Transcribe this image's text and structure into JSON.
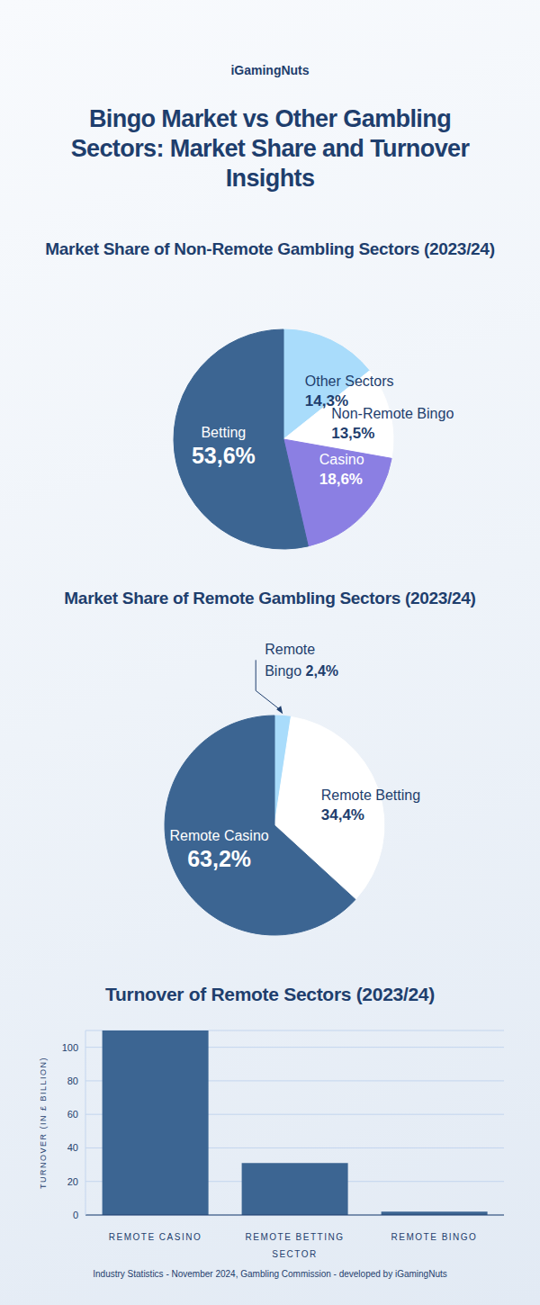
{
  "brand": "iGamingNuts",
  "title": "Bingo Market vs Other Gambling Sectors: Market Share and Turnover Insights",
  "source": "Industry Statistics - November 2024, Gambling Commission - developed by iGamingNuts",
  "chart_data": [
    {
      "type": "pie",
      "title": "Market Share of Non-Remote Gambling Sectors (2023/24)",
      "categories": [
        "Other Sectors",
        "Non-Remote Bingo",
        "Casino",
        "Betting"
      ],
      "values": [
        14.3,
        13.5,
        18.6,
        53.6
      ],
      "value_labels": [
        "14,3%",
        "13,5%",
        "18,6%",
        "53,6%"
      ],
      "colors": [
        "#a9dcfb",
        "#ffffff",
        "#8b7fe3",
        "#3c6592"
      ],
      "data_labels": true
    },
    {
      "type": "pie",
      "title": "Market Share of Remote Gambling Sectors (2023/24)",
      "categories": [
        "Remote Bingo",
        "Remote Betting",
        "Remote Casino"
      ],
      "values": [
        2.4,
        34.4,
        63.2
      ],
      "value_labels": [
        "2,4%",
        "34,4%",
        "63,2%"
      ],
      "colors": [
        "#a9dcfb",
        "#ffffff",
        "#3c6592"
      ],
      "data_labels": true
    },
    {
      "type": "bar",
      "title": "Turnover of Remote Sectors (2023/24)",
      "categories": [
        "REMOTE CASINO",
        "REMOTE BETTING SECTOR",
        "REMOTE BINGO"
      ],
      "values": [
        110,
        31,
        2
      ],
      "color": "#3c6592",
      "ylabel": "TURNOVER (IN £ BILLION)",
      "ylim": [
        0,
        110
      ],
      "yticks": [
        0,
        20,
        40,
        60,
        80,
        100
      ],
      "grid": true
    }
  ]
}
